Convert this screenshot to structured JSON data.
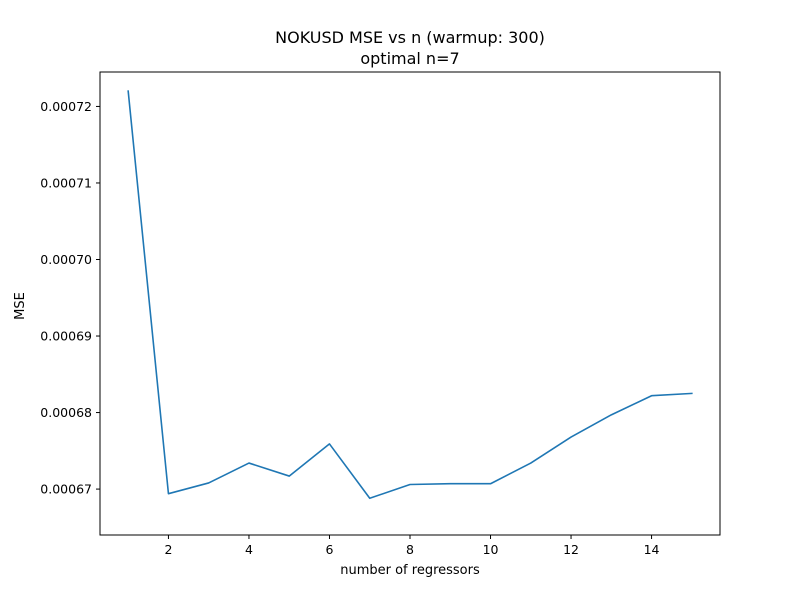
{
  "chart_data": {
    "type": "line",
    "title": "NOKUSD MSE vs n (warmup: 300)",
    "subtitle": "optimal n=7",
    "xlabel": "number of regressors",
    "ylabel": "MSE",
    "xlim": [
      0.3,
      15.7
    ],
    "ylim": [
      0.000664,
      0.0007245
    ],
    "x_ticks": [
      2,
      4,
      6,
      8,
      10,
      12,
      14
    ],
    "x_tick_labels": [
      "2",
      "4",
      "6",
      "8",
      "10",
      "12",
      "14"
    ],
    "y_ticks": [
      0.00067,
      0.00068,
      0.00069,
      0.0007,
      0.00071,
      0.00072
    ],
    "y_tick_labels": [
      "0.00067",
      "0.00068",
      "0.00069",
      "0.00070",
      "0.00071",
      "0.00072"
    ],
    "grid": false,
    "line_color": "#1f77b4",
    "x": [
      1,
      2,
      3,
      4,
      5,
      6,
      7,
      8,
      9,
      10,
      11,
      12,
      13,
      14,
      15
    ],
    "y": [
      0.000722,
      0.0006694,
      0.0006708,
      0.0006734,
      0.0006717,
      0.0006759,
      0.0006688,
      0.0006706,
      0.0006707,
      0.0006707,
      0.0006734,
      0.0006768,
      0.0006797,
      0.0006822,
      0.0006825
    ]
  }
}
